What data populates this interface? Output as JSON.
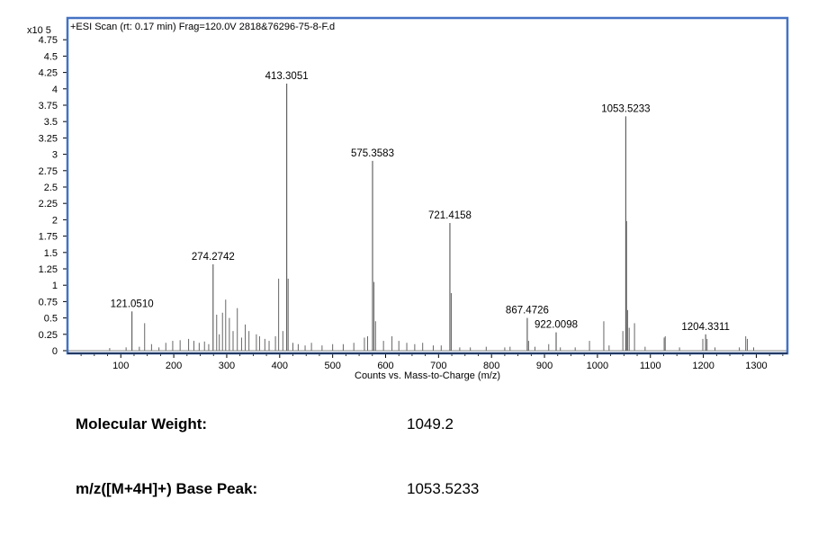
{
  "chart_data": {
    "type": "line",
    "title": "+ESI Scan (rt: 0.17 min) Frag=120.0V 2818&76296-75-8-F.d",
    "xlabel": "Counts vs. Mass-to-Charge (m/z)",
    "ylabel": "",
    "y_multiplier": "x10 5",
    "xlim": [
      0,
      1350
    ],
    "ylim": [
      0,
      4.8
    ],
    "x_ticks": [
      100,
      200,
      300,
      400,
      500,
      600,
      700,
      800,
      900,
      1000,
      1100,
      1200,
      1300
    ],
    "y_ticks": [
      "4.75",
      "4.5",
      "4.25",
      "4",
      "3.75",
      "3.5",
      "3.25",
      "3",
      "2.75",
      "2.5",
      "2.25",
      "2",
      "1.75",
      "1.5",
      "1.25",
      "1",
      "0.75",
      "0.5",
      "0.25",
      "0"
    ],
    "frame_color": "#4472c4",
    "labeled_peaks": [
      {
        "mz": 121.051,
        "intensity": 0.6,
        "label": "121.0510"
      },
      {
        "mz": 274.2742,
        "intensity": 1.32,
        "label": "274.2742"
      },
      {
        "mz": 413.3051,
        "intensity": 4.08,
        "label": "413.3051"
      },
      {
        "mz": 575.3583,
        "intensity": 2.9,
        "label": "575.3583"
      },
      {
        "mz": 721.4158,
        "intensity": 1.95,
        "label": "721.4158"
      },
      {
        "mz": 867.4726,
        "intensity": 0.5,
        "label": "867.4726"
      },
      {
        "mz": 922.0098,
        "intensity": 0.28,
        "label": "922.0098"
      },
      {
        "mz": 1053.5233,
        "intensity": 3.58,
        "label": "1053.5233"
      },
      {
        "mz": 1204.3311,
        "intensity": 0.25,
        "label": "1204.3311"
      }
    ],
    "other_peaks": [
      [
        79,
        0.04
      ],
      [
        110,
        0.05
      ],
      [
        135,
        0.06
      ],
      [
        145,
        0.42
      ],
      [
        158,
        0.1
      ],
      [
        172,
        0.05
      ],
      [
        185,
        0.12
      ],
      [
        198,
        0.15
      ],
      [
        212,
        0.16
      ],
      [
        228,
        0.18
      ],
      [
        238,
        0.15
      ],
      [
        248,
        0.12
      ],
      [
        258,
        0.14
      ],
      [
        266,
        0.1
      ],
      [
        281,
        0.55
      ],
      [
        286,
        0.25
      ],
      [
        292,
        0.58
      ],
      [
        298,
        0.78
      ],
      [
        305,
        0.5
      ],
      [
        312,
        0.3
      ],
      [
        320,
        0.65
      ],
      [
        328,
        0.2
      ],
      [
        335,
        0.4
      ],
      [
        342,
        0.3
      ],
      [
        356,
        0.25
      ],
      [
        362,
        0.22
      ],
      [
        372,
        0.18
      ],
      [
        380,
        0.15
      ],
      [
        392,
        0.22
      ],
      [
        398,
        1.1
      ],
      [
        406,
        0.3
      ],
      [
        416,
        1.1
      ],
      [
        425,
        0.12
      ],
      [
        435,
        0.1
      ],
      [
        448,
        0.08
      ],
      [
        460,
        0.12
      ],
      [
        480,
        0.08
      ],
      [
        500,
        0.1
      ],
      [
        520,
        0.1
      ],
      [
        540,
        0.12
      ],
      [
        560,
        0.2
      ],
      [
        566,
        0.22
      ],
      [
        578,
        1.05
      ],
      [
        581,
        0.45
      ],
      [
        596,
        0.15
      ],
      [
        612,
        0.22
      ],
      [
        625,
        0.15
      ],
      [
        640,
        0.12
      ],
      [
        655,
        0.1
      ],
      [
        670,
        0.12
      ],
      [
        690,
        0.08
      ],
      [
        705,
        0.08
      ],
      [
        724,
        0.88
      ],
      [
        740,
        0.05
      ],
      [
        760,
        0.05
      ],
      [
        790,
        0.06
      ],
      [
        825,
        0.05
      ],
      [
        835,
        0.06
      ],
      [
        870,
        0.15
      ],
      [
        882,
        0.06
      ],
      [
        908,
        0.1
      ],
      [
        930,
        0.05
      ],
      [
        958,
        0.05
      ],
      [
        985,
        0.15
      ],
      [
        1012,
        0.45
      ],
      [
        1022,
        0.08
      ],
      [
        1048,
        0.3
      ],
      [
        1055,
        1.98
      ],
      [
        1057,
        0.62
      ],
      [
        1060,
        0.35
      ],
      [
        1070,
        0.42
      ],
      [
        1090,
        0.06
      ],
      [
        1126,
        0.2
      ],
      [
        1128,
        0.22
      ],
      [
        1155,
        0.05
      ],
      [
        1199,
        0.18
      ],
      [
        1207,
        0.18
      ],
      [
        1222,
        0.05
      ],
      [
        1268,
        0.05
      ],
      [
        1280,
        0.22
      ],
      [
        1283,
        0.18
      ],
      [
        1295,
        0.05
      ]
    ]
  },
  "info": {
    "molecular_weight_label": "Molecular Weight:",
    "molecular_weight_value": "1049.2",
    "base_peak_label": "m/z([M+4H]+) Base Peak:",
    "base_peak_value": "1053.5233"
  }
}
